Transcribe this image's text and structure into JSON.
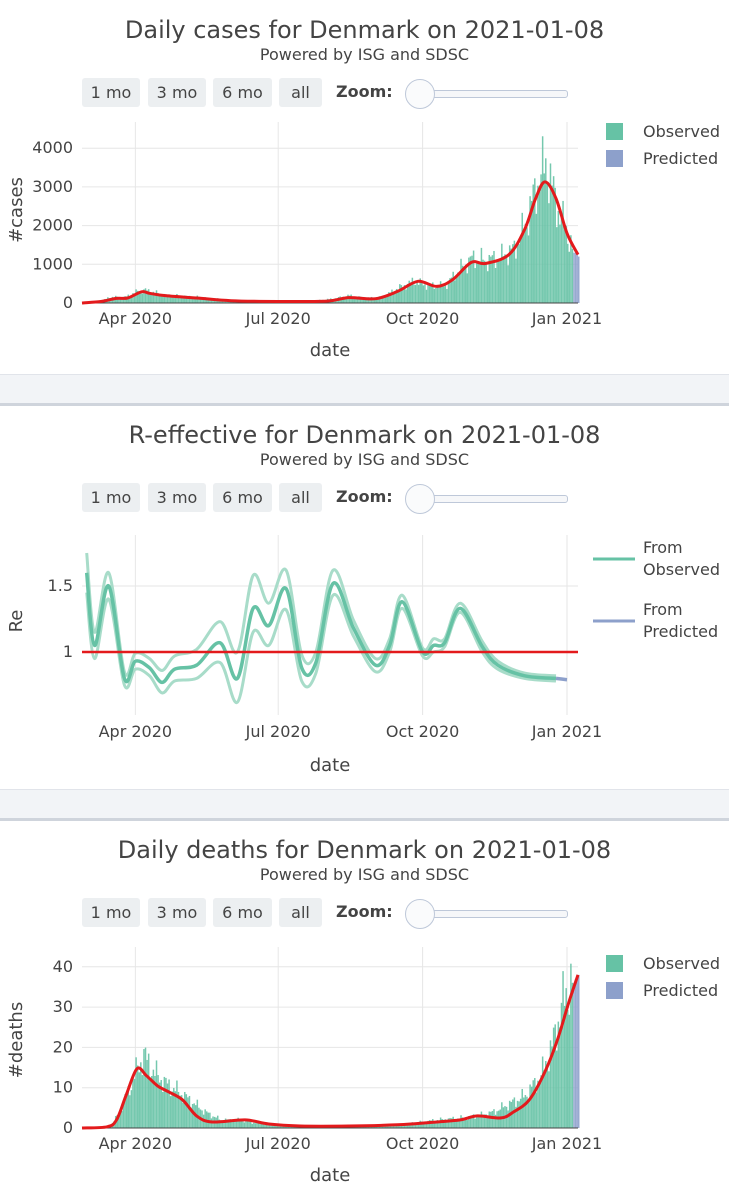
{
  "panels": [
    {
      "title": "Daily cases for Denmark on 2021-01-08",
      "subtitle": "Powered by ISG and SDSC",
      "buttons": [
        "1 mo",
        "3 mo",
        "6 mo",
        "all"
      ],
      "zoom_label": "Zoom:"
    },
    {
      "title": "R-effective for Denmark on 2021-01-08",
      "subtitle": "Powered by ISG and SDSC",
      "buttons": [
        "1 mo",
        "3 mo",
        "6 mo",
        "all"
      ],
      "zoom_label": "Zoom:"
    },
    {
      "title": "Daily deaths for Denmark on 2021-01-08",
      "subtitle": "Powered by ISG and SDSC",
      "buttons": [
        "1 mo",
        "3 mo",
        "6 mo",
        "all"
      ],
      "zoom_label": "Zoom:"
    }
  ],
  "colors": {
    "observed": "#66c2a5",
    "predicted": "#8da0cb",
    "trend": "#e31a1c",
    "band": "#a8dcc9"
  },
  "chart_data": [
    {
      "type": "bar",
      "xlabel": "date",
      "ylabel": "#cases",
      "x_ticks": [
        "Apr 2020",
        "Jul 2020",
        "Oct 2020",
        "Jan 2021"
      ],
      "y_ticks": [
        0,
        1000,
        2000,
        3000,
        4000
      ],
      "ylim": [
        0,
        4700
      ],
      "xlim": [
        "2020-02-27",
        "2021-01-08"
      ],
      "legend": [
        "Observed",
        "Predicted"
      ],
      "legend_placement": "top-right",
      "observed_anchors": [
        [
          "2020-02-27",
          5
        ],
        [
          "2020-03-10",
          40
        ],
        [
          "2020-03-15",
          150
        ],
        [
          "2020-03-25",
          150
        ],
        [
          "2020-04-02",
          300
        ],
        [
          "2020-04-07",
          330
        ],
        [
          "2020-04-20",
          200
        ],
        [
          "2020-05-10",
          150
        ],
        [
          "2020-06-01",
          60
        ],
        [
          "2020-07-01",
          50
        ],
        [
          "2020-07-25",
          60
        ],
        [
          "2020-08-05",
          110
        ],
        [
          "2020-08-15",
          190
        ],
        [
          "2020-08-25",
          120
        ],
        [
          "2020-09-05",
          150
        ],
        [
          "2020-09-15",
          380
        ],
        [
          "2020-09-25",
          560
        ],
        [
          "2020-10-05",
          440
        ],
        [
          "2020-10-15",
          450
        ],
        [
          "2020-10-25",
          900
        ],
        [
          "2020-11-01",
          1150
        ],
        [
          "2020-11-10",
          1100
        ],
        [
          "2020-11-20",
          1200
        ],
        [
          "2020-11-28",
          1400
        ],
        [
          "2020-12-05",
          2000
        ],
        [
          "2020-12-12",
          3000
        ],
        [
          "2020-12-18",
          3600
        ],
        [
          "2020-12-22",
          3000
        ],
        [
          "2020-12-26",
          2400
        ],
        [
          "2020-12-31",
          1900
        ],
        [
          "2021-01-04",
          1400
        ]
      ],
      "predicted": [
        [
          "2021-01-05",
          1300
        ],
        [
          "2021-01-06",
          1300
        ],
        [
          "2021-01-07",
          1250
        ],
        [
          "2021-01-08",
          1200
        ]
      ],
      "trend": [
        [
          "2020-02-27",
          0
        ],
        [
          "2020-03-10",
          40
        ],
        [
          "2020-03-20",
          120
        ],
        [
          "2020-03-27",
          130
        ],
        [
          "2020-04-05",
          290
        ],
        [
          "2020-04-10",
          250
        ],
        [
          "2020-04-20",
          190
        ],
        [
          "2020-05-10",
          130
        ],
        [
          "2020-06-01",
          60
        ],
        [
          "2020-07-01",
          40
        ],
        [
          "2020-08-01",
          50
        ],
        [
          "2020-08-15",
          140
        ],
        [
          "2020-09-01",
          110
        ],
        [
          "2020-09-15",
          300
        ],
        [
          "2020-09-28",
          560
        ],
        [
          "2020-10-10",
          430
        ],
        [
          "2020-10-20",
          600
        ],
        [
          "2020-11-01",
          1050
        ],
        [
          "2020-11-10",
          1020
        ],
        [
          "2020-11-25",
          1250
        ],
        [
          "2020-12-05",
          1900
        ],
        [
          "2020-12-12",
          2700
        ],
        [
          "2020-12-18",
          3130
        ],
        [
          "2020-12-25",
          2700
        ],
        [
          "2021-01-01",
          1800
        ],
        [
          "2021-01-08",
          1250
        ]
      ]
    },
    {
      "type": "line",
      "xlabel": "date",
      "ylabel": "Re",
      "x_ticks": [
        "Apr 2020",
        "Jul 2020",
        "Oct 2020",
        "Jan 2021"
      ],
      "y_ticks": [
        1,
        1.5
      ],
      "y_tick_labels": [
        "1",
        "1.5"
      ],
      "ylim": [
        0.6,
        1.85
      ],
      "xlim": [
        "2020-02-27",
        "2021-01-08"
      ],
      "reference_line": 1,
      "legend": [
        "From Observed",
        "From Predicted"
      ],
      "legend_placement": "top-right",
      "series": [
        {
          "name": "From Observed",
          "values": [
            [
              "2020-03-01",
              1.6
            ],
            [
              "2020-03-06",
              1.05
            ],
            [
              "2020-03-15",
              1.5
            ],
            [
              "2020-03-25",
              0.8
            ],
            [
              "2020-04-01",
              0.93
            ],
            [
              "2020-04-10",
              0.88
            ],
            [
              "2020-04-18",
              0.77
            ],
            [
              "2020-04-26",
              0.87
            ],
            [
              "2020-05-10",
              0.9
            ],
            [
              "2020-05-25",
              1.07
            ],
            [
              "2020-06-05",
              0.8
            ],
            [
              "2020-06-15",
              1.33
            ],
            [
              "2020-06-25",
              1.2
            ],
            [
              "2020-07-06",
              1.48
            ],
            [
              "2020-07-16",
              0.88
            ],
            [
              "2020-07-25",
              0.92
            ],
            [
              "2020-08-05",
              1.52
            ],
            [
              "2020-08-18",
              1.18
            ],
            [
              "2020-09-01",
              0.9
            ],
            [
              "2020-09-10",
              1.05
            ],
            [
              "2020-09-18",
              1.38
            ],
            [
              "2020-10-01",
              1.0
            ],
            [
              "2020-10-08",
              1.05
            ],
            [
              "2020-10-15",
              1.07
            ],
            [
              "2020-10-25",
              1.33
            ],
            [
              "2020-11-08",
              1.04
            ],
            [
              "2020-11-18",
              0.9
            ],
            [
              "2020-12-05",
              0.82
            ],
            [
              "2020-12-25",
              0.8
            ]
          ],
          "lower": [
            [
              "2020-03-01",
              1.45
            ],
            [
              "2020-03-06",
              0.95
            ],
            [
              "2020-03-15",
              1.4
            ],
            [
              "2020-03-25",
              0.75
            ],
            [
              "2020-04-01",
              0.87
            ],
            [
              "2020-04-10",
              0.82
            ],
            [
              "2020-04-18",
              0.69
            ],
            [
              "2020-04-26",
              0.78
            ],
            [
              "2020-05-10",
              0.8
            ],
            [
              "2020-05-25",
              0.92
            ],
            [
              "2020-06-05",
              0.62
            ],
            [
              "2020-06-15",
              1.15
            ],
            [
              "2020-06-25",
              1.05
            ],
            [
              "2020-07-06",
              1.32
            ],
            [
              "2020-07-16",
              0.78
            ],
            [
              "2020-07-25",
              0.84
            ],
            [
              "2020-08-05",
              1.43
            ],
            [
              "2020-08-18",
              1.12
            ],
            [
              "2020-09-01",
              0.85
            ],
            [
              "2020-09-10",
              1.0
            ],
            [
              "2020-09-18",
              1.33
            ],
            [
              "2020-10-01",
              0.97
            ],
            [
              "2020-10-08",
              1.0
            ],
            [
              "2020-10-15",
              1.04
            ],
            [
              "2020-10-25",
              1.3
            ],
            [
              "2020-11-08",
              1.0
            ],
            [
              "2020-11-18",
              0.87
            ],
            [
              "2020-12-05",
              0.8
            ],
            [
              "2020-12-25",
              0.78
            ]
          ],
          "upper": [
            [
              "2020-03-01",
              1.75
            ],
            [
              "2020-03-06",
              1.15
            ],
            [
              "2020-03-15",
              1.6
            ],
            [
              "2020-03-25",
              0.85
            ],
            [
              "2020-04-01",
              0.99
            ],
            [
              "2020-04-10",
              0.95
            ],
            [
              "2020-04-18",
              0.86
            ],
            [
              "2020-04-26",
              0.97
            ],
            [
              "2020-05-10",
              1.02
            ],
            [
              "2020-05-25",
              1.23
            ],
            [
              "2020-06-05",
              1.0
            ],
            [
              "2020-06-15",
              1.58
            ],
            [
              "2020-06-25",
              1.37
            ],
            [
              "2020-07-06",
              1.62
            ],
            [
              "2020-07-16",
              0.98
            ],
            [
              "2020-07-25",
              1.0
            ],
            [
              "2020-08-05",
              1.62
            ],
            [
              "2020-08-18",
              1.24
            ],
            [
              "2020-09-01",
              0.95
            ],
            [
              "2020-09-10",
              1.1
            ],
            [
              "2020-09-18",
              1.43
            ],
            [
              "2020-10-01",
              1.03
            ],
            [
              "2020-10-08",
              1.1
            ],
            [
              "2020-10-15",
              1.1
            ],
            [
              "2020-10-25",
              1.37
            ],
            [
              "2020-11-08",
              1.08
            ],
            [
              "2020-11-18",
              0.93
            ],
            [
              "2020-12-05",
              0.84
            ],
            [
              "2020-12-25",
              0.82
            ]
          ]
        },
        {
          "name": "From Predicted",
          "values": [
            [
              "2020-12-25",
              0.8
            ],
            [
              "2021-01-01",
              0.79
            ]
          ]
        }
      ]
    },
    {
      "type": "bar",
      "xlabel": "date",
      "ylabel": "#deaths",
      "x_ticks": [
        "Apr 2020",
        "Jul 2020",
        "Oct 2020",
        "Jan 2021"
      ],
      "y_ticks": [
        0,
        10,
        20,
        30,
        40
      ],
      "ylim": [
        0,
        43
      ],
      "xlim": [
        "2020-02-27",
        "2021-01-08"
      ],
      "legend": [
        "Observed",
        "Predicted"
      ],
      "legend_placement": "top-right",
      "observed_anchors": [
        [
          "2020-02-27",
          0
        ],
        [
          "2020-03-15",
          0
        ],
        [
          "2020-03-20",
          3
        ],
        [
          "2020-03-26",
          8
        ],
        [
          "2020-04-01",
          14
        ],
        [
          "2020-04-06",
          18
        ],
        [
          "2020-04-12",
          14
        ],
        [
          "2020-04-20",
          11
        ],
        [
          "2020-04-28",
          9
        ],
        [
          "2020-05-05",
          7
        ],
        [
          "2020-05-15",
          4
        ],
        [
          "2020-05-25",
          2
        ],
        [
          "2020-06-05",
          2
        ],
        [
          "2020-06-20",
          1
        ],
        [
          "2020-07-10",
          0.5
        ],
        [
          "2020-08-01",
          0.5
        ],
        [
          "2020-09-01",
          0.5
        ],
        [
          "2020-09-20",
          1
        ],
        [
          "2020-10-10",
          2
        ],
        [
          "2020-10-25",
          2.5
        ],
        [
          "2020-11-05",
          3
        ],
        [
          "2020-11-15",
          4
        ],
        [
          "2020-11-25",
          6
        ],
        [
          "2020-12-05",
          8
        ],
        [
          "2020-12-15",
          13
        ],
        [
          "2020-12-22",
          20
        ],
        [
          "2020-12-28",
          30
        ],
        [
          "2021-01-02",
          35
        ],
        [
          "2021-01-04",
          36
        ]
      ],
      "predicted": [
        [
          "2021-01-05",
          36
        ],
        [
          "2021-01-06",
          37
        ],
        [
          "2021-01-07",
          37.5
        ],
        [
          "2021-01-08",
          38
        ]
      ],
      "trend": [
        [
          "2020-02-27",
          0
        ],
        [
          "2020-03-14",
          0.3
        ],
        [
          "2020-03-20",
          2
        ],
        [
          "2020-03-26",
          8
        ],
        [
          "2020-04-02",
          14.7
        ],
        [
          "2020-04-08",
          13
        ],
        [
          "2020-04-15",
          10.5
        ],
        [
          "2020-04-22",
          9
        ],
        [
          "2020-05-01",
          7
        ],
        [
          "2020-05-10",
          3
        ],
        [
          "2020-05-20",
          1.5
        ],
        [
          "2020-06-10",
          2
        ],
        [
          "2020-06-25",
          1
        ],
        [
          "2020-07-15",
          0.5
        ],
        [
          "2020-08-15",
          0.5
        ],
        [
          "2020-09-15",
          0.8
        ],
        [
          "2020-10-10",
          1.5
        ],
        [
          "2020-10-25",
          2
        ],
        [
          "2020-11-05",
          3
        ],
        [
          "2020-11-20",
          2.5
        ],
        [
          "2020-11-28",
          4
        ],
        [
          "2020-12-08",
          7
        ],
        [
          "2020-12-18",
          14
        ],
        [
          "2020-12-26",
          22
        ],
        [
          "2021-01-02",
          31
        ],
        [
          "2021-01-08",
          38
        ]
      ]
    }
  ]
}
